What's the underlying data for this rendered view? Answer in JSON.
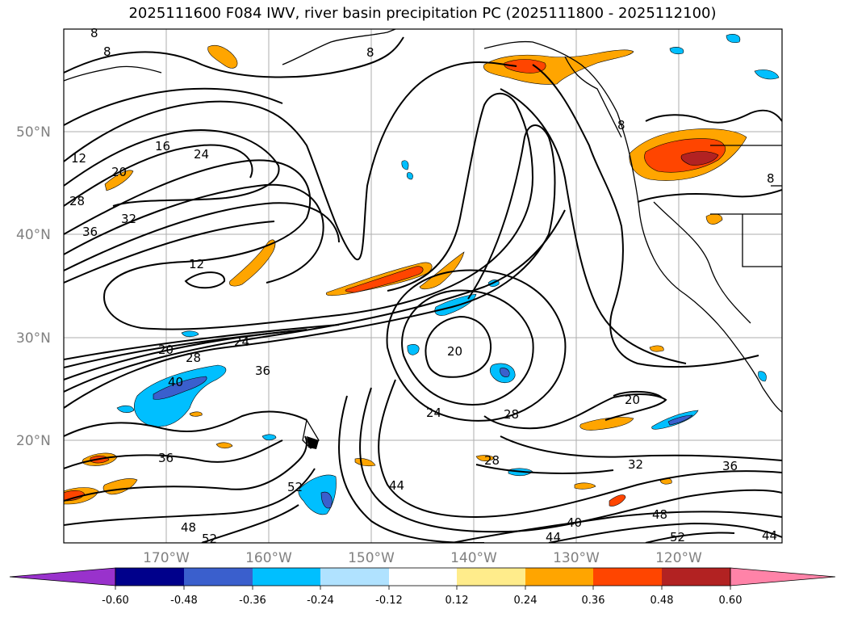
{
  "title": "2025111600 F084 IWV, river basin precipitation PC (2025111800 - 2025112100)",
  "axes": {
    "lat_labels": [
      "50°N",
      "40°N",
      "30°N",
      "20°N"
    ],
    "lon_labels": [
      "170°W",
      "160°W",
      "150°W",
      "140°W",
      "130°W",
      "120°W"
    ]
  },
  "contour_labels": [
    {
      "text": "8"
    },
    {
      "text": "8"
    },
    {
      "text": "8"
    },
    {
      "text": "8"
    },
    {
      "text": "8"
    },
    {
      "text": "12"
    },
    {
      "text": "16"
    },
    {
      "text": "24"
    },
    {
      "text": "20"
    },
    {
      "text": "28"
    },
    {
      "text": "36"
    },
    {
      "text": "32"
    },
    {
      "text": "12"
    },
    {
      "text": "20"
    },
    {
      "text": "24"
    },
    {
      "text": "28"
    },
    {
      "text": "40"
    },
    {
      "text": "36"
    },
    {
      "text": "20"
    },
    {
      "text": "24"
    },
    {
      "text": "28"
    },
    {
      "text": "20"
    },
    {
      "text": "28"
    },
    {
      "text": "36"
    },
    {
      "text": "32"
    },
    {
      "text": "36"
    },
    {
      "text": "52"
    },
    {
      "text": "44"
    },
    {
      "text": "48"
    },
    {
      "text": "52"
    },
    {
      "text": "40"
    },
    {
      "text": "44"
    },
    {
      "text": "48"
    },
    {
      "text": "52"
    },
    {
      "text": "44"
    }
  ],
  "colorbar": {
    "colors": [
      "#9932cc",
      "#00008b",
      "#3a5fcd",
      "#00bfff",
      "#b0e2ff",
      "#ffffff",
      "#ffec8b",
      "#ffa500",
      "#ff4500",
      "#b22222",
      "#ff83a8"
    ],
    "ticks": [
      "-0.60",
      "-0.48",
      "-0.36",
      "-0.24",
      "-0.12",
      "0.12",
      "0.24",
      "0.36",
      "0.48",
      "0.60"
    ]
  },
  "legend_colors": {
    "pos_light": "#ffec8b",
    "pos_mid": "#ffa500",
    "pos_strong": "#ff4500",
    "pos_max": "#b22222",
    "neg_light": "#b0e2ff",
    "neg_mid": "#00bfff",
    "neg_strong": "#3a5fcd",
    "neg_max": "#00008b"
  }
}
